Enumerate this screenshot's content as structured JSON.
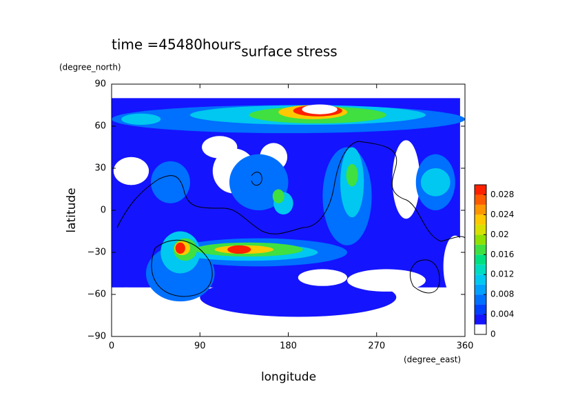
{
  "chart_data": {
    "type": "contour",
    "title": "surface stress",
    "annotation": "time =45480hours",
    "x_label": "longitude",
    "y_label": "latitude",
    "x_unit": "(degree_east)",
    "y_unit": "(degree_north)",
    "xlim": [
      0,
      360
    ],
    "xticks": [
      0,
      90,
      180,
      270,
      360
    ],
    "ylim": [
      -90,
      90
    ],
    "yticks": [
      {
        "value": -90,
        "label": "−90"
      },
      {
        "value": -60,
        "label": "−60"
      },
      {
        "value": -30,
        "label": "−30"
      },
      0,
      30,
      60,
      90
    ],
    "colorbar": {
      "levels": [
        0,
        0.002,
        0.004,
        0.006,
        0.008,
        0.01,
        0.012,
        0.014,
        0.016,
        0.018,
        0.02,
        0.022,
        0.024,
        0.026,
        0.028,
        0.03
      ],
      "colors": [
        "#ffffff",
        "#1414ff",
        "#0040ff",
        "#0070ff",
        "#00a0ff",
        "#00c8f0",
        "#00dcc0",
        "#00e080",
        "#40e040",
        "#90e000",
        "#d8e000",
        "#ffc800",
        "#ff9600",
        "#ff5a00",
        "#ff2000"
      ],
      "ticks": [
        0,
        0.004,
        0.008,
        0.012,
        0.016,
        0.02,
        0.024,
        0.028
      ]
    }
  }
}
